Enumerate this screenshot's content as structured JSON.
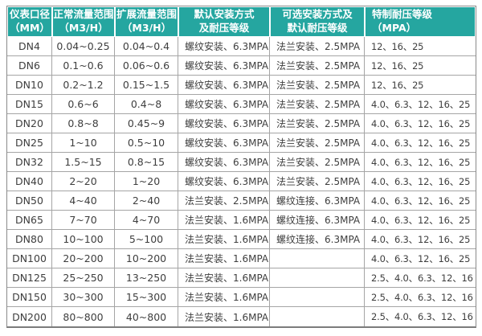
{
  "colors": {
    "header_bg": "#25a6a0",
    "header_text": "#ffffff",
    "body_text": "#3e3e3e",
    "grid_border": "#a5a5a5",
    "outer_border": "#8a8a8a"
  },
  "chart_data": {
    "type": "table",
    "title": "",
    "columns": [
      {
        "line1": "仪表口径",
        "line2": "（MM）",
        "align": "center"
      },
      {
        "line1": "正常流量范围",
        "line2": "（M3/H）",
        "align": "center"
      },
      {
        "line1": "扩展流量范围",
        "line2": "（M3/H）",
        "align": "center"
      },
      {
        "line1": "默认安装方式",
        "line2": "及耐压等级",
        "align": "center"
      },
      {
        "line1": "可选安装方式及",
        "line2": "默认耐压等级",
        "align": "center"
      },
      {
        "line1": "特制耐压等级",
        "line2": "（MPA）",
        "align": "left"
      }
    ],
    "rows": [
      [
        "DN4",
        "0.04~0.25",
        "0.04~0.4",
        "螺纹安装、6.3MPA",
        "法兰安装、2.5MPA",
        "12、16、25"
      ],
      [
        "DN6",
        "0.1~0.6",
        "0.06~0.6",
        "螺纹安装、6.3MPA",
        "法兰安装、2.5MPA",
        "12、16、25"
      ],
      [
        "DN10",
        "0.2~1.2",
        "0.15~1.5",
        "螺纹安装、6.3MPA",
        "法兰安装、2.5MPA",
        "12、16、25"
      ],
      [
        "DN15",
        "0.6~6",
        "0.4~8",
        "螺纹安装、6.3MPA",
        "法兰安装、2.5MPA",
        "4.0、6.3、12、16、25"
      ],
      [
        "DN20",
        "0.8~8",
        "0.45~9",
        "螺纹安装、6.3MPA",
        "法兰安装、2.5MPA",
        "4.0、6.3、12、16、25"
      ],
      [
        "DN25",
        "1~10",
        "0.5~10",
        "螺纹安装、6.3MPA",
        "法兰安装、2.5MPA",
        "4.0、6.3、12、16、25"
      ],
      [
        "DN32",
        "1.5~15",
        "0.8~15",
        "螺纹安装、6.3MPA",
        "法兰安装、2.5MPA",
        "4.0、6.3、12、16、25"
      ],
      [
        "DN40",
        "2~20",
        "1~20",
        "螺纹安装、6.3MPA",
        "法兰安装、2.5MPA",
        "4.0、6.3、12、16、25"
      ],
      [
        "DN50",
        "4~40",
        "2~40",
        "法兰安装、2.5MPA",
        "螺纹连接、6.3MPA",
        "4.0、6.3、12、16、25"
      ],
      [
        "DN65",
        "7~70",
        "4~70",
        "法兰安装、1.6MPA",
        "螺纹连接、6.3MPA",
        "4.0、6.3、12、16、25"
      ],
      [
        "DN80",
        "10~100",
        "5~100",
        "法兰安装、1.6MPA",
        "螺纹连接、6.3MPA",
        "4.0、6.3、12、16、25"
      ],
      [
        "DN100",
        "20~200",
        "10~200",
        "法兰安装、1.6MPA",
        "",
        "4.0、6.3、12、16、25"
      ],
      [
        "DN125",
        "25~250",
        "13~250",
        "法兰安装、1.6MPA",
        "",
        "2.5、4.0、6.3、12、16"
      ],
      [
        "DN150",
        "30~300",
        "15~300",
        "法兰安装、1.6MPA",
        "",
        "2.5、4.0、6.3、12、16"
      ],
      [
        "DN200",
        "80~800",
        "40~800",
        "法兰安装、1.6MPA",
        "",
        "2.5、4.0、6.3、12、16"
      ]
    ]
  }
}
